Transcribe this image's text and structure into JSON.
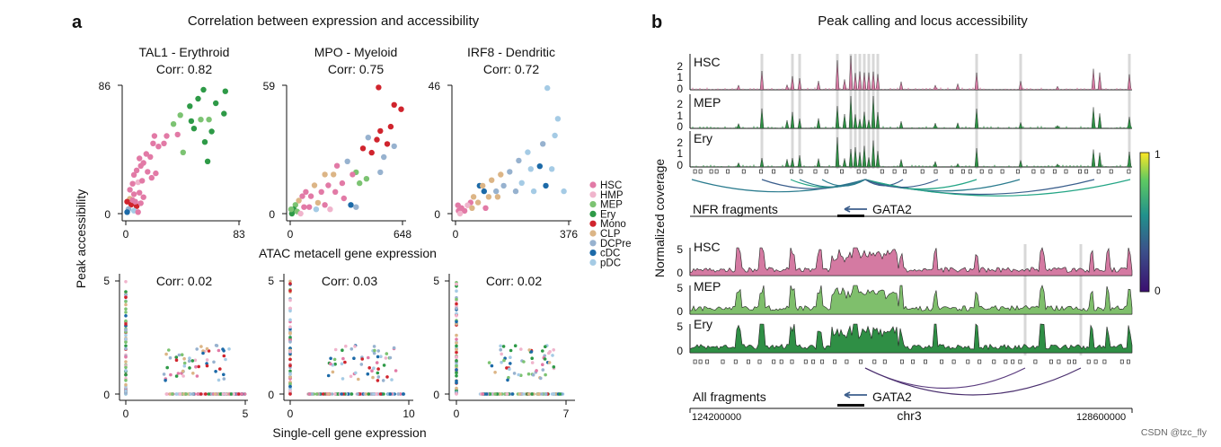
{
  "colors": {
    "HSC": "#e27aa6",
    "HMP": "#f0b4cc",
    "MEP": "#7cc372",
    "Ery": "#2e9a47",
    "Mono": "#d0242d",
    "CLP": "#dcb586",
    "DCPre": "#97b2cf",
    "cDC": "#1c6aa8",
    "pDC": "#a5cbe5",
    "trackHSC": "#d47aa2",
    "trackMEP": "#7fbf6c",
    "trackEry": "#2f8f45",
    "grey": "#d8d8d8"
  },
  "panel_a": {
    "letter": "a",
    "title": "Correlation between expression and accessibility",
    "ylabel": "Peak accessibility",
    "xlabel_top": "ATAC metacell gene expression",
    "xlabel_bottom": "Single-cell gene expression",
    "legend": [
      "HSC",
      "HMP",
      "MEP",
      "Ery",
      "Mono",
      "CLP",
      "DCPre",
      "cDC",
      "pDC"
    ]
  },
  "panel_b": {
    "letter": "b",
    "title": "Peak calling and locus accessibility",
    "ylabel": "Normalized coverage",
    "nfr_label": "NFR fragments",
    "all_label": "All fragments",
    "gene": "GATA2",
    "chrom": "chr3",
    "x_start": "124200000",
    "x_end": "128600000",
    "colorbar_max": "1",
    "colorbar_min": "0",
    "top_tracks": [
      {
        "name": "HSC",
        "ymax": "2",
        "ymid": "1",
        "ymin": "0"
      },
      {
        "name": "MEP",
        "ymax": "2",
        "ymid": "1",
        "ymin": "0"
      },
      {
        "name": "Ery",
        "ymax": "2",
        "ymid": "1",
        "ymin": "0"
      }
    ],
    "bottom_tracks": [
      {
        "name": "HSC",
        "ymax": "5",
        "ymin": "0"
      },
      {
        "name": "MEP",
        "ymax": "5",
        "ymin": "0"
      },
      {
        "name": "Ery",
        "ymax": "5",
        "ymin": "0"
      }
    ]
  },
  "watermark": "CSDN @tzc_fly",
  "chart_data": [
    {
      "type": "scatter",
      "title": "TAL1 - Erythroid",
      "subtitle": "Corr: 0.82",
      "xlim": [
        0,
        83
      ],
      "ylim": [
        0,
        86
      ],
      "x_ticks": [
        "0",
        "83"
      ],
      "y_ticks": [
        "0",
        "86"
      ],
      "points": [
        [
          57,
          83
        ],
        [
          73,
          82
        ],
        [
          47,
          72
        ],
        [
          53,
          77
        ],
        [
          48,
          62
        ],
        [
          66,
          74
        ],
        [
          55,
          63
        ],
        [
          61,
          63
        ],
        [
          72,
          67
        ],
        [
          40,
          66
        ],
        [
          35,
          60
        ],
        [
          50,
          57
        ],
        [
          63,
          55
        ],
        [
          58,
          48
        ],
        [
          60,
          35
        ],
        [
          42,
          41
        ],
        [
          38,
          53
        ],
        [
          28,
          47
        ],
        [
          30,
          52
        ],
        [
          20,
          47
        ],
        [
          21,
          52
        ],
        [
          24,
          45
        ],
        [
          15,
          40
        ],
        [
          10,
          37
        ],
        [
          18,
          38
        ],
        [
          13,
          34
        ],
        [
          11,
          32
        ],
        [
          8,
          29
        ],
        [
          16,
          28
        ],
        [
          19,
          24
        ],
        [
          22,
          27
        ],
        [
          6,
          26
        ],
        [
          5,
          20
        ],
        [
          9,
          21
        ],
        [
          12,
          22
        ],
        [
          3,
          16
        ],
        [
          6,
          13
        ],
        [
          10,
          14
        ],
        [
          13,
          11
        ],
        [
          3,
          10
        ],
        [
          1,
          8
        ],
        [
          4,
          6
        ],
        [
          8,
          5
        ],
        [
          11,
          7
        ],
        [
          2,
          3
        ],
        [
          6,
          2
        ],
        [
          9,
          1
        ],
        [
          1,
          1
        ],
        [
          5,
          9
        ],
        [
          7,
          8
        ]
      ],
      "groups": [
        "Ery",
        "Ery",
        "Ery",
        "Ery",
        "Ery",
        "Ery",
        "MEP",
        "MEP",
        "Ery",
        "MEP",
        "MEP",
        "Ery",
        "Ery",
        "Ery",
        "Ery",
        "MEP",
        "HSC",
        "HSC",
        "HSC",
        "HSC",
        "HSC",
        "HSC",
        "HSC",
        "HSC",
        "HSC",
        "HSC",
        "HSC",
        "HSC",
        "HSC",
        "HSC",
        "HSC",
        "HSC",
        "HSC",
        "HMP",
        "HSC",
        "HSC",
        "HSC",
        "HSC",
        "HSC",
        "CLP",
        "Mono",
        "Mono",
        "Mono",
        "HSC",
        "DCPre",
        "pDC",
        "HSC",
        "cDC",
        "HSC",
        "HSC"
      ]
    },
    {
      "type": "scatter",
      "title": "MPO - Myeloid",
      "subtitle": "Corr: 0.75",
      "xlim": [
        0,
        648
      ],
      "ylim": [
        0,
        59
      ],
      "x_ticks": [
        "0",
        "648"
      ],
      "y_ticks": [
        "0",
        "59"
      ],
      "points": [
        [
          510,
          58
        ],
        [
          600,
          50
        ],
        [
          640,
          48
        ],
        [
          580,
          40
        ],
        [
          520,
          38
        ],
        [
          500,
          34
        ],
        [
          560,
          32
        ],
        [
          450,
          35
        ],
        [
          420,
          30
        ],
        [
          470,
          28
        ],
        [
          540,
          26
        ],
        [
          600,
          31
        ],
        [
          520,
          19
        ],
        [
          440,
          16
        ],
        [
          380,
          19
        ],
        [
          400,
          14
        ],
        [
          360,
          18
        ],
        [
          330,
          24
        ],
        [
          270,
          22
        ],
        [
          300,
          14
        ],
        [
          260,
          10
        ],
        [
          250,
          18
        ],
        [
          200,
          18
        ],
        [
          220,
          13
        ],
        [
          180,
          10
        ],
        [
          140,
          13
        ],
        [
          120,
          8
        ],
        [
          160,
          5
        ],
        [
          90,
          10
        ],
        [
          70,
          8
        ],
        [
          50,
          6
        ],
        [
          30,
          4
        ],
        [
          20,
          2
        ],
        [
          40,
          1
        ],
        [
          60,
          0
        ],
        [
          110,
          3
        ],
        [
          150,
          2
        ],
        [
          200,
          4
        ],
        [
          310,
          7
        ],
        [
          350,
          4
        ],
        [
          380,
          3
        ],
        [
          230,
          2
        ],
        [
          80,
          3
        ],
        [
          10,
          0
        ],
        [
          5,
          2
        ]
      ],
      "groups": [
        "Mono",
        "Mono",
        "Mono",
        "Mono",
        "Mono",
        "Mono",
        "Mono",
        "DCPre",
        "Mono",
        "Mono",
        "DCPre",
        "DCPre",
        "DCPre",
        "MEP",
        "MEP",
        "MEP",
        "HSC",
        "DCPre",
        "HSC",
        "HSC",
        "HSC",
        "CLP",
        "CLP",
        "HSC",
        "HSC",
        "CLP",
        "HSC",
        "CLP",
        "HSC",
        "HSC",
        "CLP",
        "MEP",
        "Ery",
        "MEP",
        "HMP",
        "HSC",
        "pDC",
        "HSC",
        "HSC",
        "cDC",
        "DCPre",
        "HMP",
        "HSC",
        "Ery",
        "MEP"
      ]
    },
    {
      "type": "scatter",
      "title": "IRF8 - Dendritic",
      "subtitle": "Corr: 0.72",
      "xlim": [
        0,
        376
      ],
      "ylim": [
        0,
        46
      ],
      "x_ticks": [
        "0",
        "376"
      ],
      "y_ticks": [
        "0",
        "46"
      ],
      "points": [
        [
          305,
          45
        ],
        [
          340,
          34
        ],
        [
          330,
          28
        ],
        [
          290,
          25
        ],
        [
          240,
          22
        ],
        [
          210,
          19
        ],
        [
          250,
          16
        ],
        [
          320,
          16
        ],
        [
          280,
          17
        ],
        [
          360,
          8
        ],
        [
          300,
          10
        ],
        [
          260,
          8
        ],
        [
          180,
          15
        ],
        [
          150,
          14
        ],
        [
          160,
          10
        ],
        [
          120,
          12
        ],
        [
          135,
          8
        ],
        [
          110,
          6
        ],
        [
          95,
          8
        ],
        [
          80,
          10
        ],
        [
          60,
          6
        ],
        [
          50,
          4
        ],
        [
          40,
          3
        ],
        [
          20,
          2
        ],
        [
          10,
          1
        ],
        [
          30,
          1
        ],
        [
          55,
          2
        ],
        [
          75,
          4
        ],
        [
          100,
          2
        ],
        [
          90,
          10
        ],
        [
          140,
          6
        ],
        [
          200,
          8
        ],
        [
          220,
          11
        ],
        [
          8,
          3
        ],
        [
          15,
          0
        ]
      ],
      "groups": [
        "pDC",
        "pDC",
        "pDC",
        "DCPre",
        "pDC",
        "DCPre",
        "pDC",
        "pDC",
        "cDC",
        "pDC",
        "cDC",
        "pDC",
        "DCPre",
        "CLP",
        "DCPre",
        "CLP",
        "DCPre",
        "CLP",
        "cDC",
        "cDC",
        "CLP",
        "HSC",
        "HMP",
        "HSC",
        "HSC",
        "HSC",
        "CLP",
        "CLP",
        "HSC",
        "CLP",
        "CLP",
        "DCPre",
        "pDC",
        "HSC",
        "HMP"
      ]
    },
    {
      "type": "scatter",
      "subtitle": "Corr: 0.02",
      "xlim": [
        0,
        5
      ],
      "ylim": [
        0,
        5
      ],
      "x_ticks": [
        "0",
        "5"
      ],
      "y_ticks": [
        "0",
        "5"
      ],
      "points_summary": "vertical column at x=0 and horizontal row at y=0, cluster x~2-4 y~0.7-2"
    },
    {
      "type": "scatter",
      "subtitle": "Corr: 0.03",
      "xlim": [
        0,
        10
      ],
      "ylim": [
        0,
        5
      ],
      "x_ticks": [
        "0",
        "10"
      ],
      "y_ticks": [
        "0",
        "5"
      ],
      "points_summary": "vertical column at x=0 and horizontal row at y=0, cluster x~2-9 y~0.7-2.5"
    },
    {
      "type": "scatter",
      "subtitle": "Corr: 0.02",
      "xlim": [
        0,
        7
      ],
      "ylim": [
        0,
        5
      ],
      "x_ticks": [
        "0",
        "7"
      ],
      "y_ticks": [
        "0",
        "5"
      ],
      "points_summary": "vertical column at x=0 and horizontal row at y=0, cluster x~2-6 y~0.7-2.2"
    }
  ]
}
